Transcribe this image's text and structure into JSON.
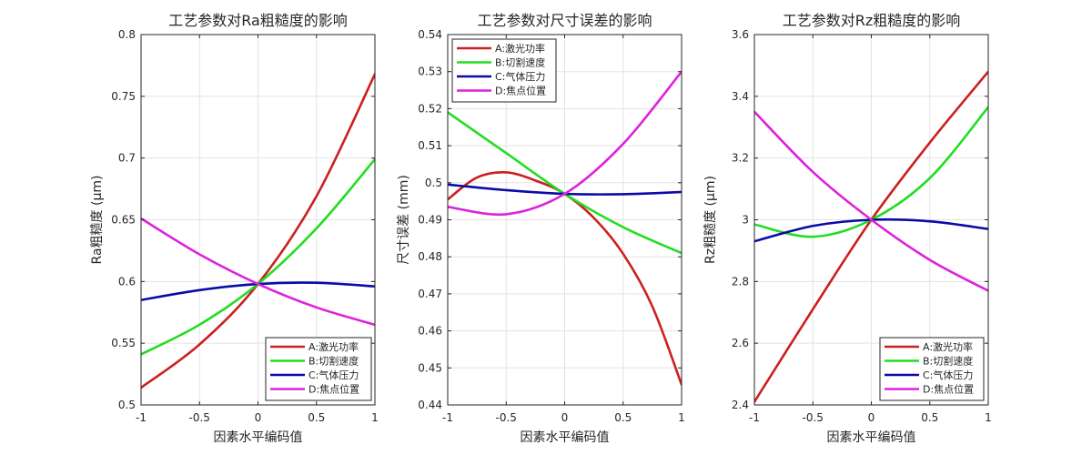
{
  "chart_data": [
    {
      "type": "line",
      "title": "工艺参数对Ra粗糙度的影响",
      "xlabel": "因素水平编码值",
      "ylabel": "Ra粗糙度 (μm)",
      "xlim": [
        -1,
        1
      ],
      "ylim": [
        0.5,
        0.8
      ],
      "xticks": [
        "-1",
        "-0.5",
        "0",
        "0.5",
        "1"
      ],
      "yticks": [
        "0.5",
        "0.55",
        "0.6",
        "0.65",
        "0.7",
        "0.75",
        "0.8"
      ],
      "grid": true,
      "legend_position": "bottom-right",
      "series": [
        {
          "name": "A:激光功率",
          "color": "#cc1f1f",
          "x": [
            -1,
            -0.5,
            0,
            0.5,
            1
          ],
          "y": [
            0.514,
            0.549,
            0.598,
            0.669,
            0.768
          ]
        },
        {
          "name": "B:切割速度",
          "color": "#22dd22",
          "x": [
            -1,
            -0.5,
            0,
            0.5,
            1
          ],
          "y": [
            0.541,
            0.565,
            0.598,
            0.643,
            0.699
          ]
        },
        {
          "name": "C:气体压力",
          "color": "#0a0aa8",
          "x": [
            -1,
            -0.5,
            0,
            0.5,
            1
          ],
          "y": [
            0.585,
            0.593,
            0.598,
            0.599,
            0.596
          ]
        },
        {
          "name": "D:焦点位置",
          "color": "#dd22dd",
          "x": [
            -1,
            -0.5,
            0,
            0.5,
            1
          ],
          "y": [
            0.651,
            0.622,
            0.598,
            0.579,
            0.565
          ]
        }
      ]
    },
    {
      "type": "line",
      "title": "工艺参数对尺寸误差的影响",
      "xlabel": "因素水平编码值",
      "ylabel": "尺寸误差 (mm)",
      "xlim": [
        -1,
        1
      ],
      "ylim": [
        0.44,
        0.54
      ],
      "xticks": [
        "-1",
        "-0.5",
        "0",
        "0.5",
        "1"
      ],
      "yticks": [
        "0.44",
        "0.45",
        "0.46",
        "0.47",
        "0.48",
        "0.49",
        "0.5",
        "0.51",
        "0.52",
        "0.53",
        "0.54"
      ],
      "grid": true,
      "legend_position": "top-left",
      "series": [
        {
          "name": "A:激光功率",
          "color": "#cc1f1f",
          "x": [
            -1,
            -0.75,
            -0.5,
            -0.25,
            0,
            0.25,
            0.5,
            0.75,
            1
          ],
          "y": [
            0.4955,
            0.5014,
            0.5028,
            0.5006,
            0.497,
            0.4905,
            0.4808,
            0.4666,
            0.4455
          ]
        },
        {
          "name": "B:切割速度",
          "color": "#22dd22",
          "x": [
            -1,
            -0.5,
            0,
            0.5,
            1
          ],
          "y": [
            0.519,
            0.508,
            0.497,
            0.488,
            0.481
          ]
        },
        {
          "name": "C:气体压力",
          "color": "#0a0aa8",
          "x": [
            -1,
            -0.5,
            0,
            0.5,
            1
          ],
          "y": [
            0.4995,
            0.498,
            0.497,
            0.4969,
            0.4975
          ]
        },
        {
          "name": "D:焦点位置",
          "color": "#dd22dd",
          "x": [
            -1,
            -0.5,
            0,
            0.5,
            1
          ],
          "y": [
            0.4935,
            0.4915,
            0.497,
            0.5105,
            0.53
          ]
        }
      ]
    },
    {
      "type": "line",
      "title": "工艺参数对Rz粗糙度的影响",
      "xlabel": "因素水平编码值",
      "ylabel": "Rz粗糙度 (μm)",
      "xlim": [
        -1,
        1
      ],
      "ylim": [
        2.4,
        3.6
      ],
      "xticks": [
        "-1",
        "-0.5",
        "0",
        "0.5",
        "1"
      ],
      "yticks": [
        "2.4",
        "2.6",
        "2.8",
        "3",
        "3.2",
        "3.4",
        "3.6"
      ],
      "grid": true,
      "legend_position": "bottom-right",
      "series": [
        {
          "name": "A:激光功率",
          "color": "#cc1f1f",
          "x": [
            -1,
            -0.5,
            0,
            0.5,
            1
          ],
          "y": [
            2.41,
            2.71,
            3.0,
            3.25,
            3.48
          ]
        },
        {
          "name": "B:切割速度",
          "color": "#22dd22",
          "x": [
            -1,
            -0.5,
            0,
            0.5,
            1
          ],
          "y": [
            2.985,
            2.945,
            3.0,
            3.135,
            3.365
          ]
        },
        {
          "name": "C:气体压力",
          "color": "#0a0aa8",
          "x": [
            -1,
            -0.5,
            0,
            0.5,
            1
          ],
          "y": [
            2.93,
            2.98,
            3.0,
            2.995,
            2.97
          ]
        },
        {
          "name": "D:焦点位置",
          "color": "#dd22dd",
          "x": [
            -1,
            -0.5,
            0,
            0.5,
            1
          ],
          "y": [
            3.35,
            3.155,
            3.0,
            2.87,
            2.77
          ]
        }
      ]
    }
  ]
}
